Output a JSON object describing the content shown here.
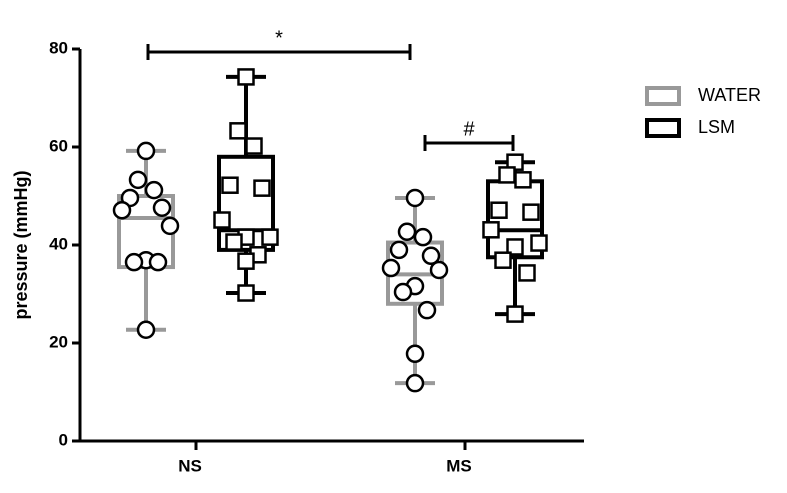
{
  "chart_data": {
    "type": "box",
    "y_label": "pressure (mmHg)",
    "categories": [
      "NS",
      "MS"
    ],
    "ylim": [
      0,
      80
    ],
    "yticks": [
      0,
      20,
      40,
      60,
      80
    ],
    "series": [
      {
        "name": "WATER",
        "color": "#999999",
        "marker": "circle",
        "boxes": [
          {
            "whislo": 22.7,
            "q1": 35.5,
            "med": 45.5,
            "q3": 50,
            "whishi": 59.2,
            "points": [
              59.2,
              53.3,
              51.2,
              49.6,
              47.6,
              47.1,
              43.9,
              36.9,
              36.5,
              36.5,
              22.7
            ]
          },
          {
            "whislo": 11.8,
            "q1": 28,
            "med": 34,
            "q3": 40.5,
            "whishi": 49.6,
            "points": [
              49.6,
              42.7,
              41.6,
              39,
              37.8,
              35.3,
              34.9,
              31.6,
              30.4,
              26.7,
              17.8,
              11.8
            ]
          }
        ]
      },
      {
        "name": "LSM",
        "color": "#000000",
        "marker": "square",
        "boxes": [
          {
            "whislo": 30.2,
            "q1": 39,
            "med": 43,
            "q3": 58,
            "whishi": 74.3,
            "points": [
              74.3,
              63.3,
              60.2,
              52.2,
              51.6,
              45.1,
              41.6,
              41.6,
              40.6,
              38,
              36.7,
              30.2
            ]
          },
          {
            "whislo": 25.9,
            "q1": 37.5,
            "med": 43,
            "q3": 53,
            "whishi": 56.9,
            "points": [
              56.9,
              54.3,
              53.3,
              47.1,
              46.7,
              43.1,
              40.4,
              39.6,
              36.9,
              34.3,
              25.9
            ]
          }
        ]
      }
    ],
    "annotations": [
      "*",
      "#"
    ]
  }
}
